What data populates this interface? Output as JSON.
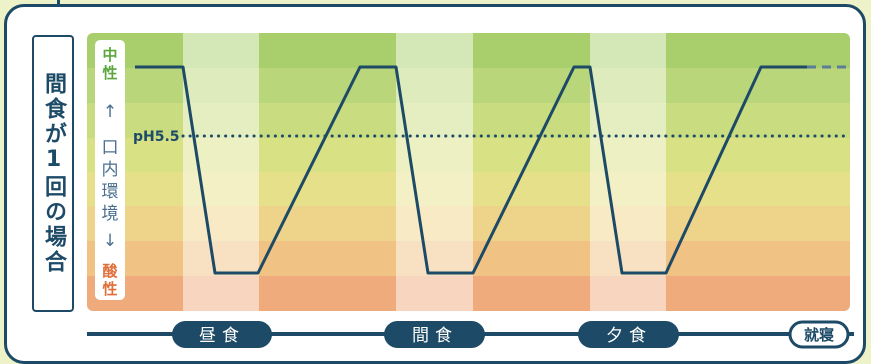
{
  "side_label": "間食が1回の場合",
  "axis": {
    "top": [
      "中",
      "性"
    ],
    "middle": [
      "口",
      "内",
      "環",
      "境"
    ],
    "bottom": [
      "酸",
      "性"
    ],
    "up_arrow": "↑",
    "down_arrow": "↓"
  },
  "ph_label": "pH5.5",
  "timeline": {
    "events": [
      "昼食",
      "間食",
      "夕食"
    ],
    "end": "就寝"
  },
  "colors": {
    "line": "#1d4a66",
    "dotted": "#1d4a66",
    "neutral": "#a8cf6a",
    "acidic": "#efa878"
  }
}
